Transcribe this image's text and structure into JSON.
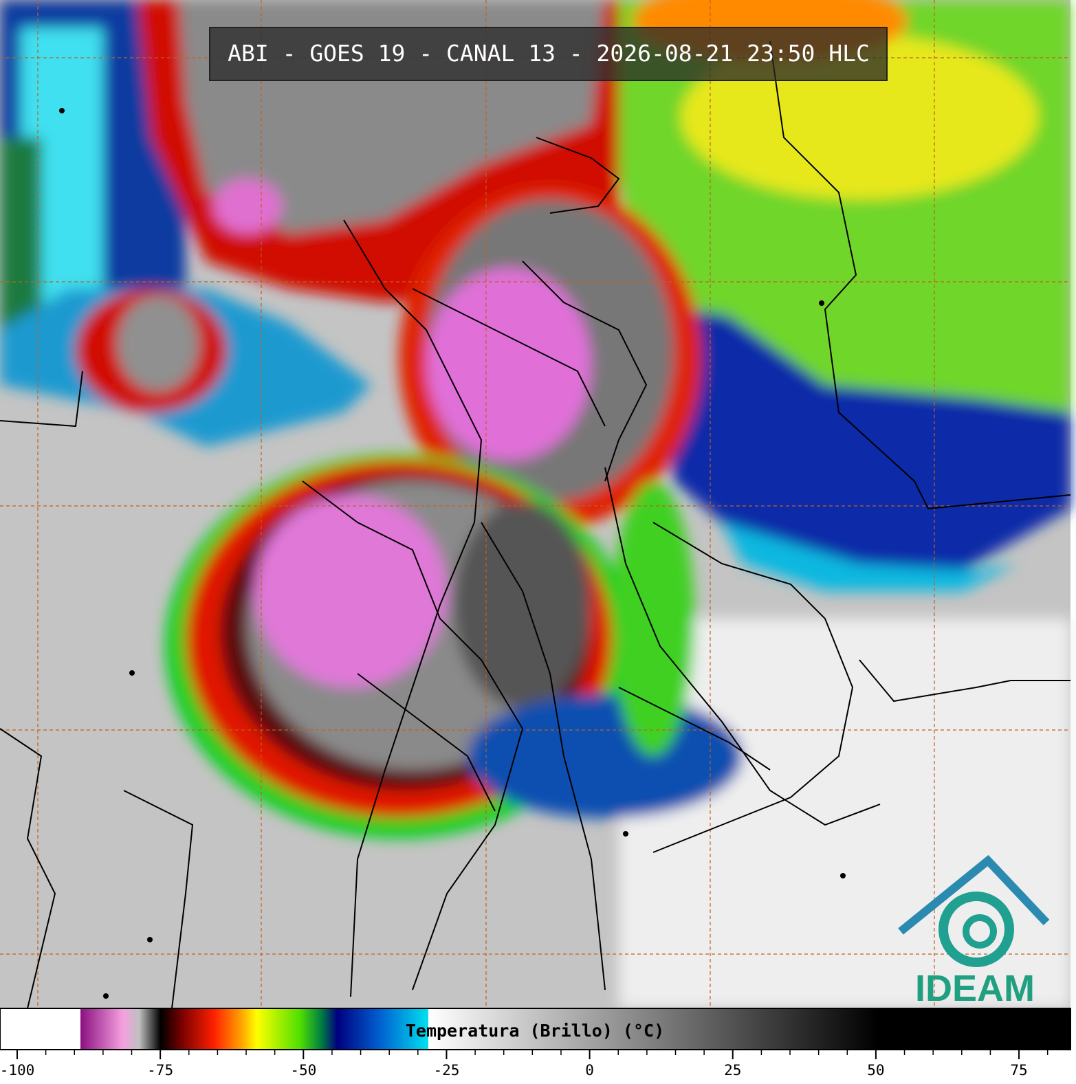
{
  "title": "ABI - GOES 19 - CANAL 13 - 2026-08-21 23:50 HLC",
  "colorbar": {
    "label": "Temperatura (Brillo) (°C)",
    "range": [
      -103,
      84
    ],
    "ticks": [
      -100,
      -75,
      -50,
      -25,
      0,
      25,
      50,
      75
    ],
    "minor_ticks": [
      -95,
      -90,
      -85,
      -80,
      -70,
      -65,
      -60,
      -55,
      -45,
      -40,
      -35,
      -30,
      -20,
      -15,
      -10,
      -5,
      5,
      10,
      15,
      20,
      30,
      35,
      40,
      45,
      55,
      60,
      65,
      70,
      80
    ]
  },
  "logo": {
    "text": "IDEAM"
  }
}
